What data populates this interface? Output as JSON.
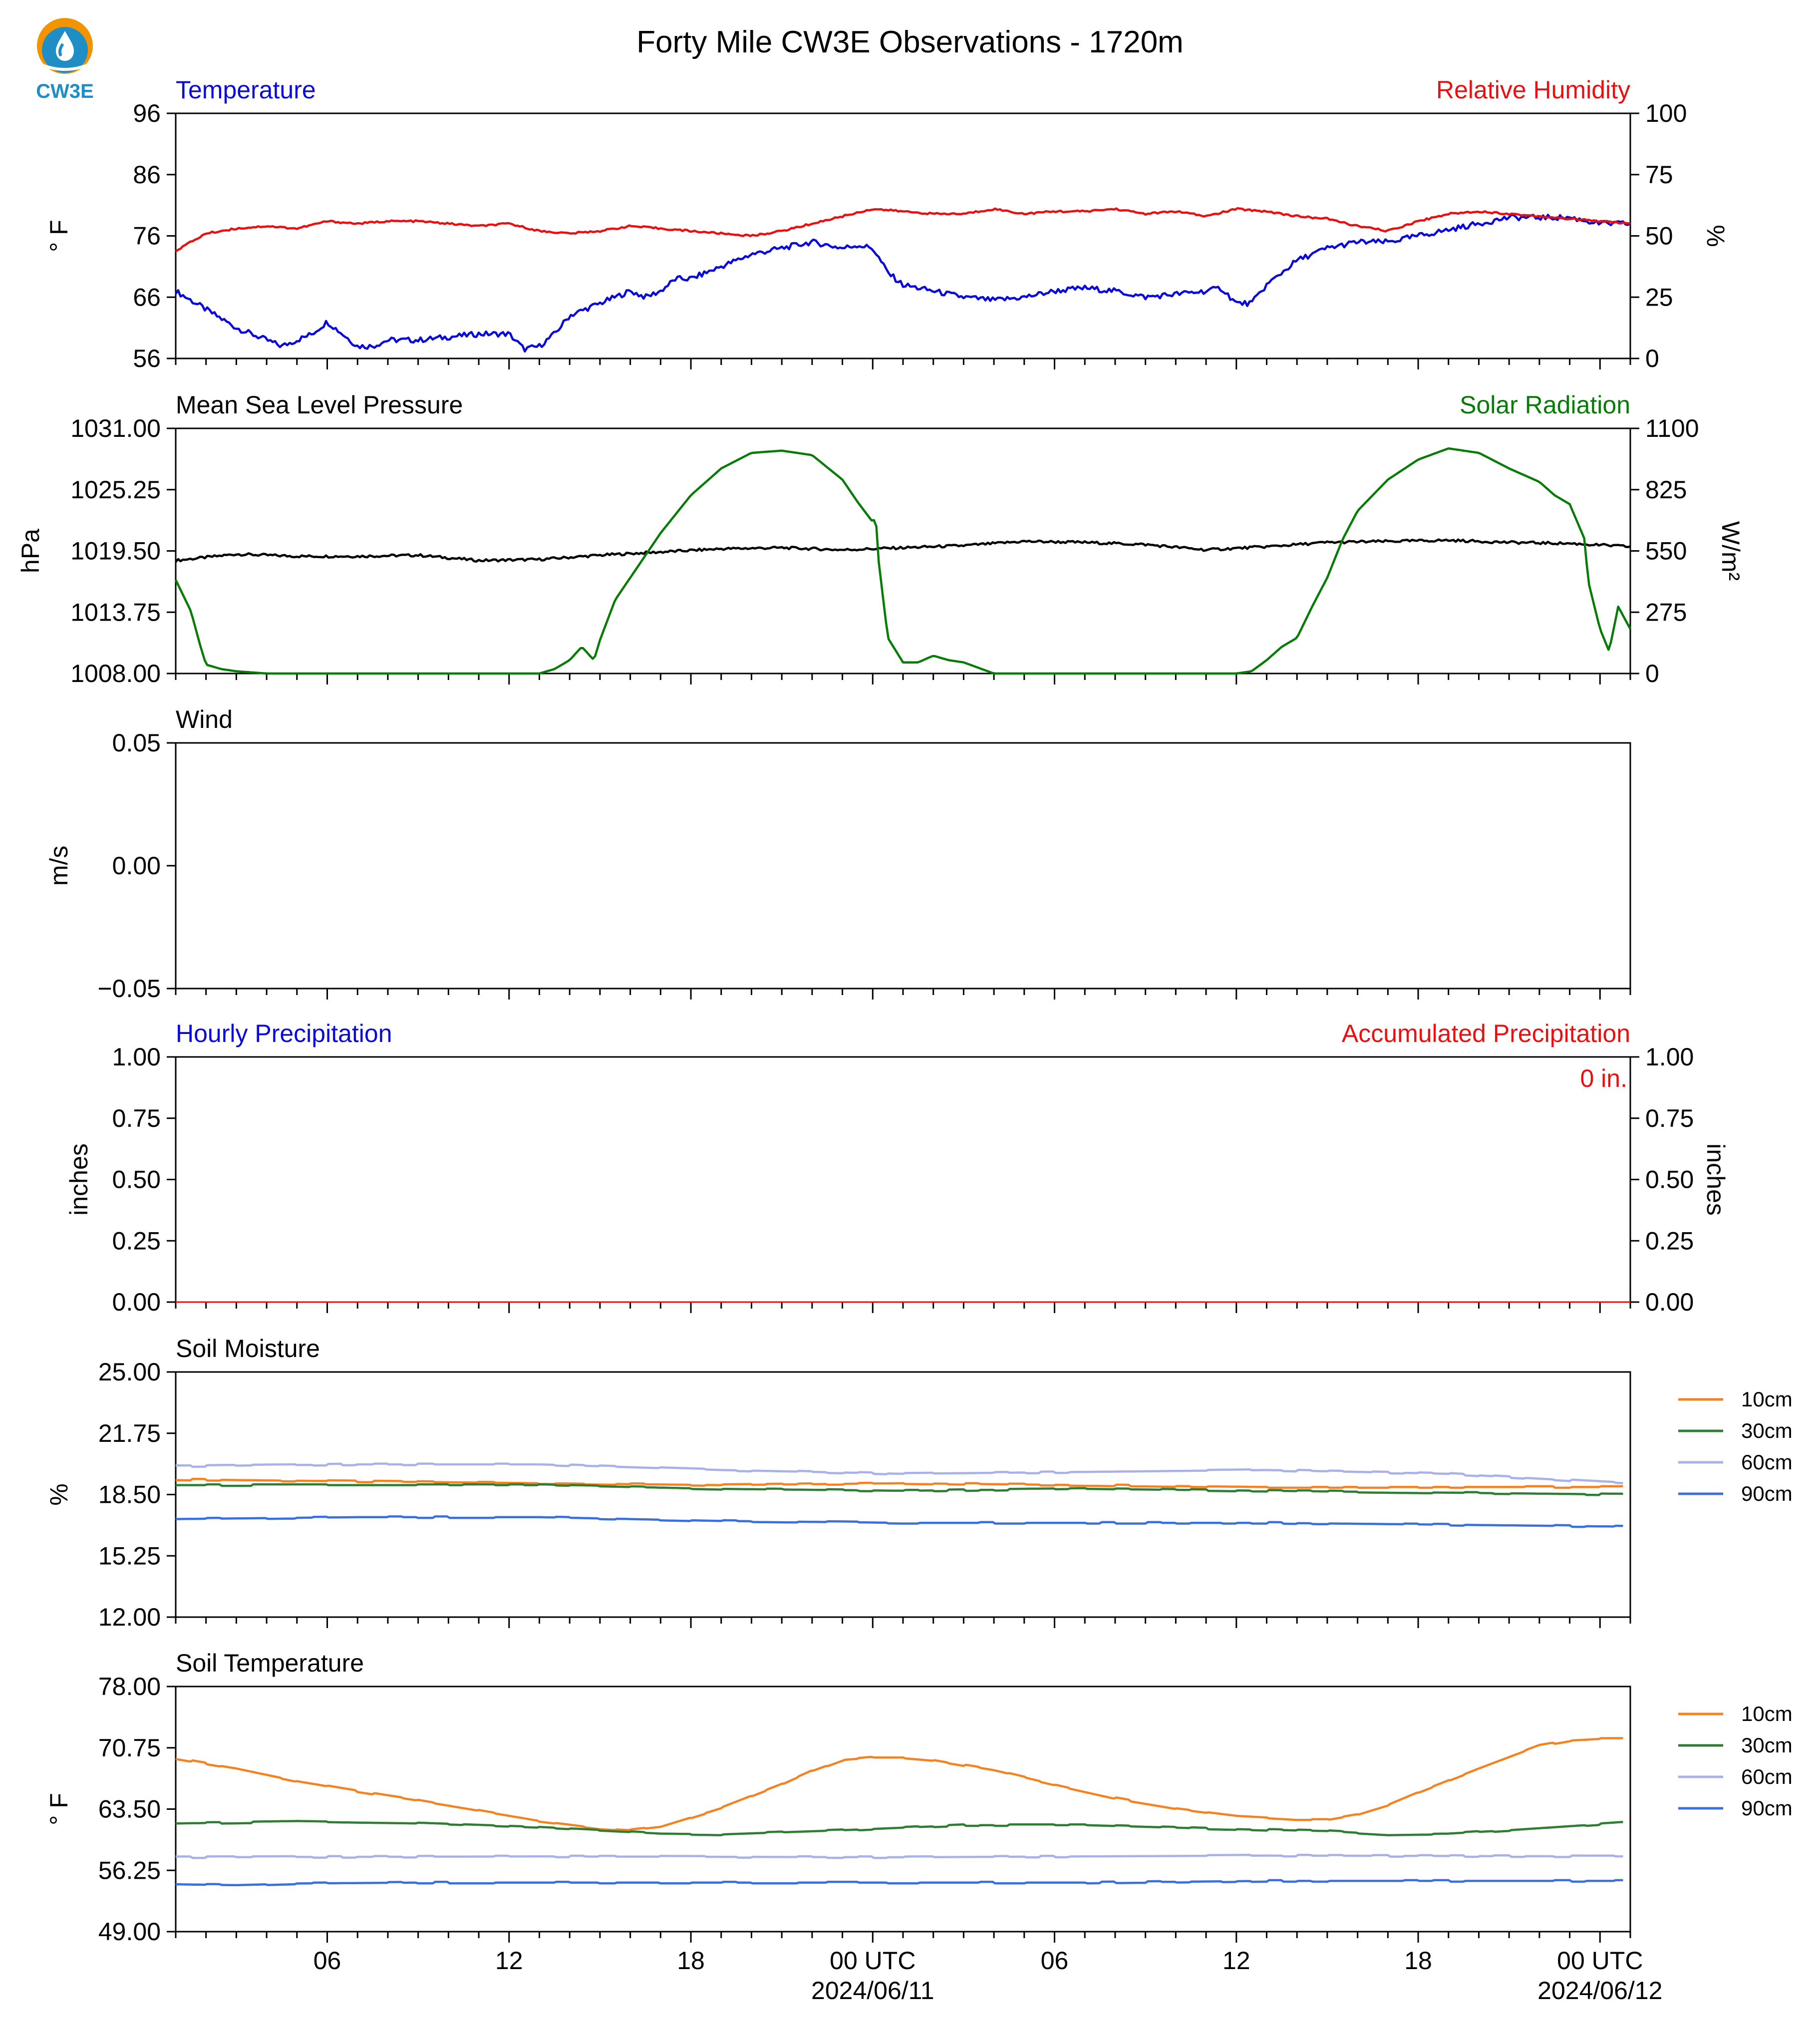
{
  "title": "Forty Mile CW3E Observations - 1720m",
  "logo_text": "CW3E",
  "colors": {
    "blue": "#0a0ad8",
    "red": "#e81010",
    "black": "#000000",
    "green": "#067b06",
    "c10": "#f58220",
    "c30": "#2e7d32",
    "c60": "#a8b2e8",
    "c90": "#3a6fe0"
  },
  "x_axis": {
    "range_hours": [
      0,
      48
    ],
    "ticks": [
      {
        "h": 5,
        "label": "06",
        "sub": ""
      },
      {
        "h": 11,
        "label": "12",
        "sub": ""
      },
      {
        "h": 17,
        "label": "18",
        "sub": ""
      },
      {
        "h": 23,
        "label": "00 UTC",
        "sub": "2024/06/11"
      },
      {
        "h": 29,
        "label": "06",
        "sub": ""
      },
      {
        "h": 35,
        "label": "12",
        "sub": ""
      },
      {
        "h": 41,
        "label": "18",
        "sub": ""
      },
      {
        "h": 47,
        "label": "00 UTC",
        "sub": "2024/06/12"
      }
    ]
  },
  "chart_data": [
    {
      "type": "line",
      "title_left": "Temperature",
      "title_right": "Relative Humidity",
      "ylabel": "° F",
      "ylabel_right": "%",
      "ylim": [
        56,
        96
      ],
      "yticks": [
        "96",
        "86",
        "76",
        "66",
        "56"
      ],
      "ylim_right": [
        0,
        100
      ],
      "yticks_right": [
        "100",
        "75",
        "50",
        "25",
        "0"
      ],
      "series": [
        {
          "name": "Temperature",
          "axis": "left",
          "color_key": "blue",
          "x": [
            0,
            1,
            2,
            3,
            3.5,
            4,
            4.5,
            5,
            5.5,
            6,
            6.5,
            7,
            8,
            9,
            10,
            11,
            11.5,
            12,
            12.5,
            13,
            14,
            15,
            15.5,
            16,
            16.5,
            17,
            18,
            19,
            20,
            21,
            22,
            22.5,
            23,
            23.5,
            24,
            25,
            26,
            27,
            28,
            29,
            30,
            31,
            32,
            33,
            34,
            34.5,
            35,
            35.5,
            36,
            37,
            38,
            39,
            40,
            41,
            42,
            43,
            44,
            45,
            46,
            47,
            48
          ],
          "y": [
            67,
            64,
            61,
            59,
            58,
            59,
            60,
            62,
            60,
            58,
            58,
            59,
            59,
            59.5,
            60,
            60,
            57.5,
            58,
            60,
            63,
            65,
            67,
            66,
            67,
            69,
            69,
            71,
            73,
            74,
            75,
            74,
            74.5,
            74,
            70,
            68,
            67,
            66,
            65.5,
            66,
            67,
            67.5,
            67,
            66,
            66.5,
            67,
            67.5,
            65,
            65,
            68,
            72,
            74,
            75,
            75,
            76,
            77,
            78,
            79,
            79,
            79,
            78,
            78
          ]
        },
        {
          "name": "Relative Humidity",
          "axis": "right",
          "color_key": "red",
          "x": [
            0,
            1,
            2,
            3,
            4,
            5,
            6,
            7,
            8,
            9,
            10,
            11,
            12,
            13,
            14,
            15,
            16,
            17,
            18,
            19,
            20,
            21,
            22,
            23,
            24,
            25,
            26,
            27,
            28,
            29,
            30,
            31,
            32,
            33,
            34,
            35,
            36,
            37,
            38,
            39,
            40,
            41,
            42,
            43,
            44,
            45,
            46,
            47,
            48
          ],
          "y": [
            44,
            51,
            53,
            54,
            53,
            56,
            55,
            56,
            56,
            55,
            54,
            55,
            52,
            51,
            52,
            54,
            53,
            52,
            51,
            50,
            52,
            55,
            58,
            61,
            60,
            59,
            59,
            61,
            59,
            60,
            60,
            61,
            59,
            60,
            58,
            61,
            60,
            58,
            57,
            54,
            52,
            56,
            59,
            60,
            59,
            58,
            57,
            56,
            55
          ]
        }
      ]
    },
    {
      "type": "line",
      "title_left": "Mean Sea Level Pressure",
      "title_right": "Solar Radiation",
      "ylabel": "hPa",
      "ylabel_right": "W/m²",
      "ylim": [
        1008,
        1031
      ],
      "yticks": [
        "1031.00",
        "1025.25",
        "1019.50",
        "1013.75",
        "1008.00"
      ],
      "ylim_right": [
        0,
        1100
      ],
      "yticks_right": [
        "1100",
        "825",
        "550",
        "275",
        "0"
      ],
      "series": [
        {
          "name": "Mean Sea Level Pressure",
          "axis": "left",
          "color_key": "black",
          "x": [
            0,
            2,
            4,
            6,
            8,
            10,
            12,
            14,
            16,
            18,
            20,
            22,
            24,
            26,
            28,
            30,
            32,
            34,
            36,
            38,
            40,
            42,
            44,
            46,
            48
          ],
          "y": [
            1018.6,
            1019.2,
            1019.0,
            1019.0,
            1019.1,
            1018.6,
            1018.7,
            1019.1,
            1019.4,
            1019.7,
            1019.8,
            1019.6,
            1019.8,
            1020.0,
            1020.4,
            1020.3,
            1020.1,
            1019.6,
            1019.9,
            1020.3,
            1020.4,
            1020.5,
            1020.3,
            1020.2,
            1019.9
          ]
        },
        {
          "name": "Solar Radiation",
          "axis": "right",
          "color_key": "green",
          "x": [
            0,
            0.5,
            0.8,
            1,
            1.5,
            2,
            3,
            5,
            8,
            11,
            12,
            12.5,
            13,
            13.4,
            13.8,
            14,
            14.5,
            15,
            16,
            17,
            18,
            19,
            20,
            21,
            22,
            22.5,
            23,
            23.1,
            23.2,
            23.5,
            24,
            24.5,
            25,
            25.5,
            26,
            27,
            30,
            33,
            35,
            35.5,
            36,
            36.5,
            37,
            37.5,
            38,
            38.5,
            39,
            40,
            41,
            42,
            43,
            44,
            45,
            45.5,
            46,
            46.5,
            46.6,
            47,
            47.3,
            47.6,
            48
          ],
          "y": [
            420,
            280,
            130,
            40,
            20,
            10,
            0,
            0,
            0,
            0,
            0,
            20,
            60,
            120,
            60,
            150,
            330,
            430,
            630,
            800,
            920,
            990,
            1000,
            980,
            870,
            770,
            680,
            700,
            500,
            160,
            50,
            50,
            80,
            60,
            50,
            0,
            0,
            0,
            0,
            10,
            60,
            120,
            160,
            300,
            430,
            600,
            730,
            870,
            960,
            1010,
            990,
            920,
            860,
            800,
            760,
            600,
            420,
            200,
            100,
            300,
            200
          ]
        }
      ]
    },
    {
      "type": "line",
      "title_left": "Wind",
      "ylabel": "m/s",
      "ylim": [
        -0.055,
        0.055
      ],
      "yticks": [
        "0.05",
        "0.00",
        "−0.05"
      ],
      "series": []
    },
    {
      "type": "line",
      "title_left": "Hourly Precipitation",
      "title_right": "Accumulated Precipitation",
      "annotation": "0 in.",
      "ylabel": "inches",
      "ylabel_right": "inches",
      "ylim": [
        0,
        1
      ],
      "yticks": [
        "1.00",
        "0.75",
        "0.50",
        "0.25",
        "0.00"
      ],
      "ylim_right": [
        0,
        1
      ],
      "yticks_right": [
        "1.00",
        "0.75",
        "0.50",
        "0.25",
        "0.00"
      ],
      "series": [
        {
          "name": "Hourly Precipitation",
          "axis": "left",
          "color_key": "blue",
          "x": [
            0,
            48
          ],
          "y": [
            0,
            0
          ]
        },
        {
          "name": "Accumulated Precipitation",
          "axis": "right",
          "color_key": "red",
          "x": [
            0,
            48
          ],
          "y": [
            0,
            0
          ]
        }
      ]
    },
    {
      "type": "line",
      "title_left": "Soil Moisture",
      "ylabel": "%",
      "ylim": [
        12,
        25
      ],
      "yticks": [
        "25.00",
        "21.75",
        "18.50",
        "15.25",
        "12.00"
      ],
      "legend_position": "right",
      "series": [
        {
          "name": "10cm",
          "color_key": "c10",
          "x": [
            0,
            6,
            12,
            18,
            24,
            30,
            36,
            42,
            47.8
          ],
          "y": [
            19.3,
            19.2,
            19.1,
            19.0,
            19.1,
            19.0,
            18.9,
            18.9,
            18.9
          ]
        },
        {
          "name": "30cm",
          "color_key": "c30",
          "x": [
            0,
            6,
            12,
            18,
            24,
            30,
            36,
            42,
            47.8
          ],
          "y": [
            19.0,
            19.0,
            19.0,
            18.8,
            18.7,
            18.8,
            18.7,
            18.6,
            18.5
          ]
        },
        {
          "name": "60cm",
          "color_key": "c60",
          "x": [
            0,
            6,
            12,
            18,
            24,
            30,
            36,
            42,
            47.8
          ],
          "y": [
            20.0,
            20.1,
            20.1,
            19.8,
            19.6,
            19.7,
            19.8,
            19.6,
            19.1
          ]
        },
        {
          "name": "90cm",
          "color_key": "c90",
          "x": [
            0,
            6,
            12,
            18,
            24,
            30,
            36,
            42,
            47.8
          ],
          "y": [
            17.2,
            17.3,
            17.3,
            17.1,
            17.0,
            17.0,
            17.0,
            16.9,
            16.8
          ]
        }
      ]
    },
    {
      "type": "line",
      "title_left": "Soil Temperature",
      "ylabel": "° F",
      "ylim": [
        49,
        78
      ],
      "yticks": [
        "78.00",
        "70.75",
        "63.50",
        "56.25",
        "49.00"
      ],
      "legend_position": "right",
      "series": [
        {
          "name": "10cm",
          "color_key": "c10",
          "x": [
            0,
            2,
            4,
            6,
            8,
            10,
            12,
            14,
            15,
            16,
            18,
            20,
            21,
            22,
            23,
            24,
            25,
            27,
            29,
            31,
            33,
            35,
            37,
            38,
            39,
            40,
            41,
            43,
            45,
            46,
            47,
            47.8
          ],
          "y": [
            69.5,
            68.3,
            66.8,
            65.6,
            64.5,
            63.3,
            62.1,
            61.2,
            61.0,
            61.4,
            63.6,
            66.4,
            68.0,
            69.3,
            69.6,
            69.6,
            69.3,
            68.1,
            66.4,
            64.8,
            63.6,
            62.7,
            62.3,
            62.3,
            62.9,
            64.0,
            65.5,
            68.3,
            71.0,
            71.6,
            71.8,
            71.8
          ]
        },
        {
          "name": "30cm",
          "color_key": "c30",
          "x": [
            0,
            4,
            8,
            12,
            16,
            18,
            22,
            26,
            30,
            34,
            38,
            40,
            42,
            44,
            47.8
          ],
          "y": [
            61.8,
            62.0,
            61.8,
            61.3,
            60.6,
            60.5,
            61.0,
            61.6,
            61.6,
            61.2,
            60.9,
            60.5,
            60.6,
            61.0,
            61.9
          ]
        },
        {
          "name": "60cm",
          "color_key": "c60",
          "x": [
            0,
            12,
            24,
            36,
            47.8
          ],
          "y": [
            57.8,
            57.9,
            57.8,
            58.0,
            57.9
          ]
        },
        {
          "name": "90cm",
          "color_key": "c90",
          "x": [
            0,
            2,
            4,
            8,
            12,
            24,
            30,
            36,
            40,
            44,
            47.8
          ],
          "y": [
            54.6,
            54.5,
            54.7,
            54.8,
            54.8,
            54.8,
            54.8,
            55.0,
            55.0,
            55.0,
            55.0
          ]
        }
      ]
    }
  ]
}
